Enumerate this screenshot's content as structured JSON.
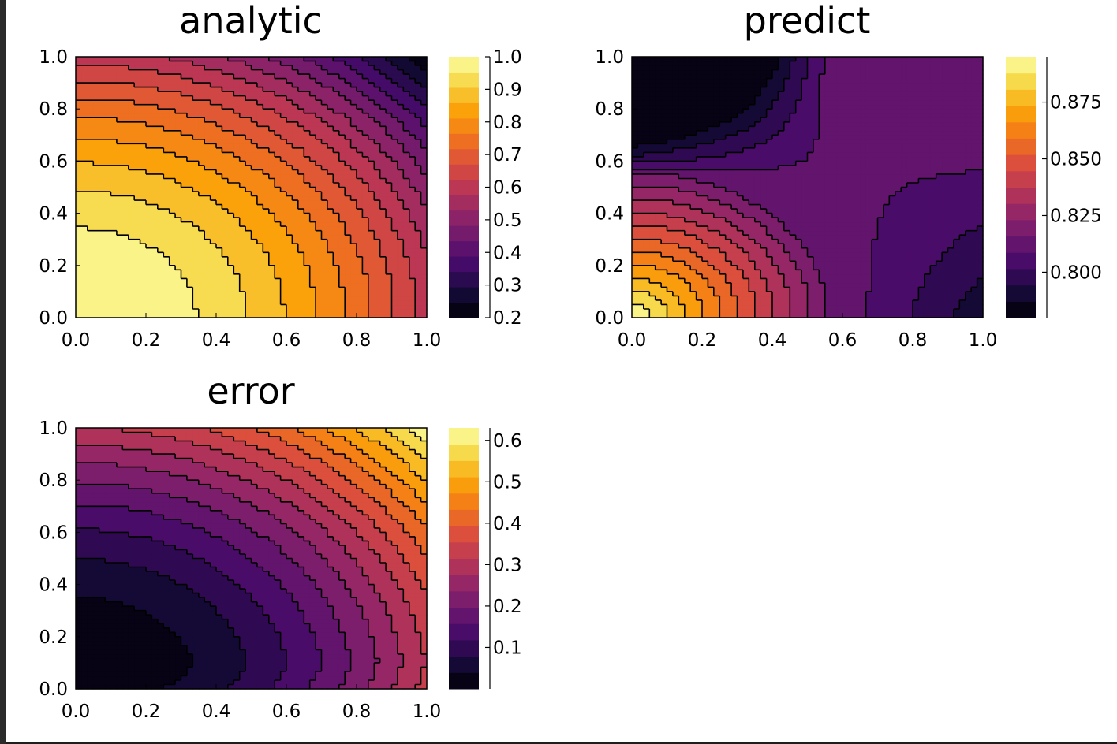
{
  "chart_data": [
    {
      "type": "heatmap",
      "title": "analytic",
      "xlim": [
        0,
        1
      ],
      "ylim": [
        0,
        1
      ],
      "xticks": [
        "0.0",
        "0.2",
        "0.4",
        "0.6",
        "0.8",
        "1.0"
      ],
      "yticks": [
        "0.0",
        "0.2",
        "0.4",
        "0.6",
        "0.8",
        "1.0"
      ],
      "colorbar": {
        "colormap": "inferno",
        "range": [
          0.2,
          1.0
        ],
        "levels": 17,
        "ticks": [
          "1.0",
          "0.9",
          "0.8",
          "0.7",
          "0.6",
          "0.5",
          "0.4",
          "0.3",
          "0.2"
        ],
        "tick_values": [
          1.0,
          0.9,
          0.8,
          0.7,
          0.6,
          0.5,
          0.4,
          0.3,
          0.2
        ]
      },
      "field": "1 - 0.8*(x^2 + y^2)/2 with corner minimum at (1,1)",
      "value_min": 0.2,
      "value_max": 1.0,
      "contour_lines": true
    },
    {
      "type": "heatmap",
      "title": "predict",
      "xlim": [
        0,
        1
      ],
      "ylim": [
        0,
        1
      ],
      "xticks": [
        "0.0",
        "0.2",
        "0.4",
        "0.6",
        "0.8",
        "1.0"
      ],
      "yticks": [
        "0.0",
        "0.2",
        "0.4",
        "0.6",
        "0.8",
        "1.0"
      ],
      "colorbar": {
        "colormap": "inferno",
        "range": [
          0.78,
          0.895
        ],
        "levels": 16,
        "ticks": [
          "0.875",
          "0.850",
          "0.825",
          "0.800"
        ],
        "tick_values": [
          0.875,
          0.85,
          0.825,
          0.8
        ]
      },
      "value_min": 0.78,
      "value_max": 0.895,
      "contour_lines": true
    },
    {
      "type": "heatmap",
      "title": "error",
      "xlim": [
        0,
        1
      ],
      "ylim": [
        0,
        1
      ],
      "xticks": [
        "0.0",
        "0.2",
        "0.4",
        "0.6",
        "0.8",
        "1.0"
      ],
      "yticks": [
        "0.0",
        "0.2",
        "0.4",
        "0.6",
        "0.8",
        "1.0"
      ],
      "colorbar": {
        "colormap": "inferno",
        "range": [
          0.0,
          0.63
        ],
        "levels": 16,
        "ticks": [
          "0.6",
          "0.5",
          "0.4",
          "0.3",
          "0.2",
          "0.1"
        ],
        "tick_values": [
          0.6,
          0.5,
          0.4,
          0.3,
          0.2,
          0.1
        ]
      },
      "value_min": 0.0,
      "value_max": 0.63,
      "contour_lines": true
    }
  ]
}
